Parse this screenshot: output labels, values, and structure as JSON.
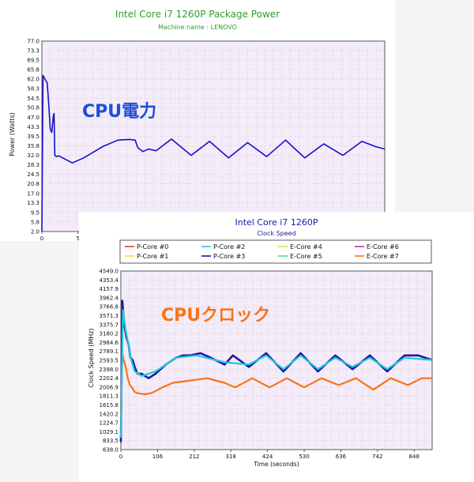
{
  "chart_data": [
    {
      "type": "line",
      "title": "Intel Core i7 1260P Package Power",
      "subtitle": "Machine name : LENOVO",
      "overlay_label": "CPU電力",
      "ylabel": "Power (Watts)",
      "xlabel": "",
      "ylim": [
        2.0,
        77.0
      ],
      "xlim": [
        0,
        900
      ],
      "y_ticks": [
        "77.0",
        "73.3",
        "69.5",
        "65.8",
        "62.0",
        "58.3",
        "54.5",
        "50.8",
        "47.0",
        "43.3",
        "39.5",
        "35.8",
        "32.0",
        "28.3",
        "24.5",
        "20.8",
        "17.0",
        "13.3",
        "9.5",
        "5.8",
        "2.0"
      ],
      "x_ticks": [
        "0",
        "5"
      ],
      "grid": true,
      "series": [
        {
          "color": "#1111cc",
          "x": [
            0,
            3,
            8,
            14,
            18,
            22,
            26,
            30,
            32,
            34,
            38,
            44,
            80,
            110,
            160,
            200,
            230,
            245,
            252,
            265,
            280,
            300,
            340,
            392,
            440,
            490,
            540,
            590,
            640,
            690,
            740,
            790,
            840,
            875,
            900
          ],
          "y": [
            2.0,
            63.5,
            62.0,
            60.5,
            52.0,
            42.5,
            41.0,
            47.5,
            48.5,
            32.0,
            31.5,
            31.8,
            29.0,
            31.0,
            35.5,
            38.0,
            38.3,
            38.0,
            35.0,
            33.5,
            34.5,
            33.8,
            38.4,
            32.0,
            37.5,
            31.0,
            37.0,
            31.5,
            38.0,
            31.0,
            36.5,
            32.0,
            37.5,
            35.5,
            34.5
          ]
        }
      ]
    },
    {
      "type": "line",
      "title": "Intel Core i7 1260P",
      "subtitle": "Clock Speed",
      "overlay_label": "CPUクロック",
      "ylabel": "Clock Speed (MHz)",
      "xlabel": "Time (seconds)",
      "ylim": [
        638.0,
        4549.0
      ],
      "xlim": [
        0,
        900
      ],
      "y_ticks": [
        "4549.0",
        "4353.4",
        "4157.9",
        "3962.4",
        "3766.8",
        "3571.3",
        "3375.7",
        "3180.2",
        "2984.6",
        "2789.1",
        "2593.5",
        "2398.0",
        "2202.4",
        "2006.9",
        "1811.3",
        "1615.8",
        "1420.2",
        "1224.7",
        "1029.1",
        "833.5",
        "638.0"
      ],
      "x_ticks": [
        "0",
        "106",
        "212",
        "318",
        "424",
        "530",
        "636",
        "742",
        "848"
      ],
      "x_tick_values": [
        0,
        106,
        212,
        318,
        424,
        530,
        636,
        742,
        848
      ],
      "grid": true,
      "legend_position": "top",
      "legend": [
        {
          "name": "P-Core #0",
          "color": "#e53935"
        },
        {
          "name": "P-Core #2",
          "color": "#26c6da"
        },
        {
          "name": "E-Core #4",
          "color": "#d4e157"
        },
        {
          "name": "E-Core #6",
          "color": "#c026d3"
        },
        {
          "name": "P-Core #1",
          "color": "#fdd835"
        },
        {
          "name": "P-Core #3",
          "color": "#1a1aa6"
        },
        {
          "name": "E-Core #5",
          "color": "#4ade80"
        },
        {
          "name": "E-Core #7",
          "color": "#f97316"
        }
      ],
      "series": [
        {
          "name": "P-Core #3",
          "color": "#1a1aa6",
          "x": [
            0,
            4,
            10,
            16,
            22,
            28,
            34,
            40,
            48,
            60,
            80,
            100,
            130,
            160,
            180,
            200,
            230,
            260,
            300,
            324,
            370,
            420,
            470,
            520,
            570,
            620,
            670,
            720,
            770,
            820,
            860,
            900
          ],
          "y": [
            800,
            3900,
            3350,
            3100,
            2950,
            2650,
            2600,
            2450,
            2300,
            2300,
            2200,
            2300,
            2500,
            2650,
            2700,
            2700,
            2750,
            2650,
            2500,
            2700,
            2450,
            2750,
            2350,
            2750,
            2350,
            2700,
            2400,
            2700,
            2350,
            2700,
            2700,
            2600
          ]
        },
        {
          "name": "E-Core #7",
          "color": "#f97316",
          "x": [
            0,
            4,
            8,
            14,
            20,
            26,
            32,
            40,
            50,
            70,
            90,
            120,
            150,
            200,
            250,
            300,
            330,
            380,
            430,
            480,
            530,
            580,
            630,
            680,
            730,
            780,
            830,
            870,
            900
          ],
          "y": [
            1300,
            2750,
            2600,
            2450,
            2200,
            2050,
            2000,
            1900,
            1870,
            1850,
            1880,
            2000,
            2100,
            2150,
            2200,
            2100,
            2000,
            2200,
            2000,
            2200,
            2000,
            2200,
            2050,
            2200,
            1950,
            2200,
            2050,
            2200,
            2200
          ]
        },
        {
          "name": "P-Core #2",
          "color": "#26c6da",
          "x": [
            0,
            6,
            14,
            22,
            30,
            40,
            60,
            100,
            160,
            220,
            300,
            370,
            420,
            470,
            520,
            570,
            620,
            670,
            720,
            770,
            820,
            900
          ],
          "y": [
            900,
            3700,
            3250,
            2950,
            2600,
            2350,
            2250,
            2350,
            2650,
            2700,
            2550,
            2500,
            2700,
            2400,
            2700,
            2400,
            2650,
            2450,
            2650,
            2400,
            2650,
            2600
          ]
        }
      ]
    }
  ]
}
